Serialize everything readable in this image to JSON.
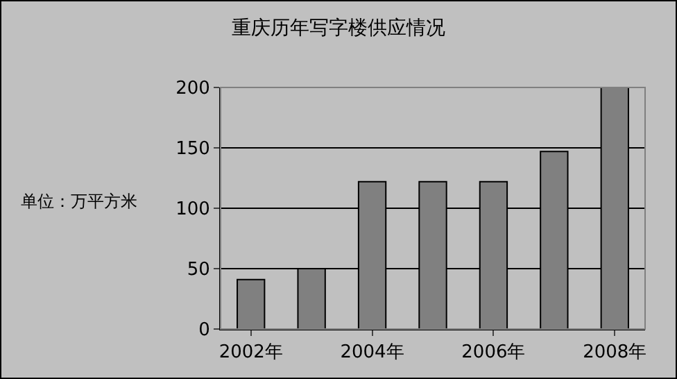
{
  "chart_data": {
    "type": "bar",
    "title": "重庆历年写字楼供应情况",
    "ylabel": "单位：万平方米",
    "categories": [
      "2002年",
      null,
      "2004年",
      null,
      "2006年",
      null,
      "2008年"
    ],
    "values": [
      41,
      50,
      122,
      122,
      122,
      147,
      200
    ],
    "color": "#808080",
    "ylim": [
      0,
      200
    ],
    "yticks": [
      0,
      50,
      100,
      150,
      200
    ],
    "grid": "y"
  }
}
